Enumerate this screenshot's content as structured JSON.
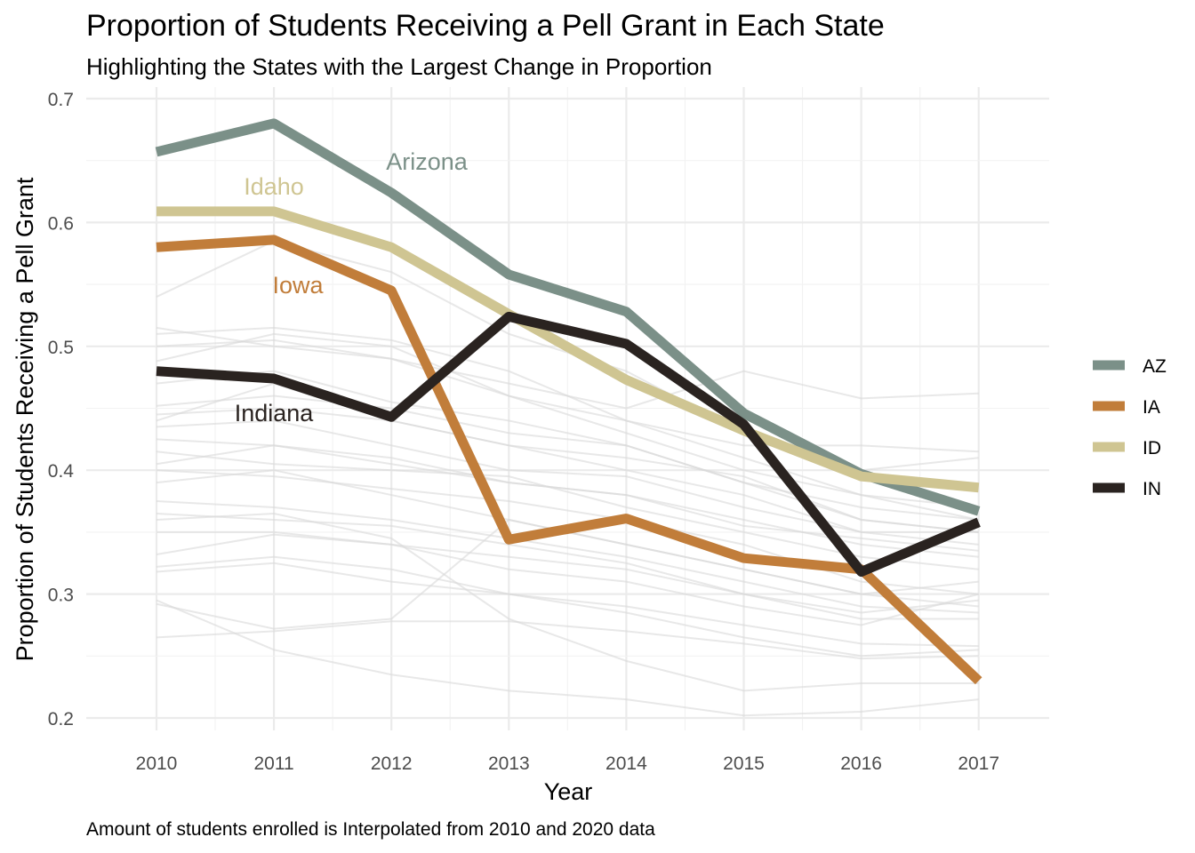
{
  "chart_data": {
    "type": "line",
    "title": "Proportion of Students Receiving a Pell Grant in Each State",
    "subtitle": "Highlighting the States with the Largest Change in Proportion",
    "caption": "Amount of students enrolled is Interpolated from 2010 and 2020 data",
    "xlabel": "Year",
    "ylabel": "Proportion of Students Receiving a Pell Grant",
    "x": [
      2010,
      2011,
      2012,
      2013,
      2014,
      2015,
      2016,
      2017
    ],
    "x_ticks": [
      "2010",
      "2011",
      "2012",
      "2013",
      "2014",
      "2015",
      "2016",
      "2017"
    ],
    "y_ticks": [
      "0.2",
      "0.3",
      "0.4",
      "0.5",
      "0.6",
      "0.7"
    ],
    "ylim": [
      0.2,
      0.7
    ],
    "grid": true,
    "legend_position": "right",
    "series": [
      {
        "name": "AZ",
        "label": "Arizona",
        "color": "#7b9088",
        "values": [
          0.657,
          0.68,
          0.624,
          0.558,
          0.528,
          0.446,
          0.397,
          0.367
        ]
      },
      {
        "name": "IA",
        "label": "Iowa",
        "color": "#c17d3a",
        "values": [
          0.58,
          0.586,
          0.545,
          0.344,
          0.361,
          0.329,
          0.32,
          0.23
        ]
      },
      {
        "name": "ID",
        "label": "Idaho",
        "color": "#cfc592",
        "values": [
          0.609,
          0.609,
          0.58,
          0.526,
          0.473,
          0.432,
          0.395,
          0.386
        ]
      },
      {
        "name": "IN",
        "label": "Indiana",
        "color": "#2a2320",
        "values": [
          0.48,
          0.474,
          0.443,
          0.524,
          0.502,
          0.437,
          0.318,
          0.358
        ]
      }
    ],
    "background_series_color": "#d9d9d9",
    "background_series": [
      [
        0.54,
        0.585,
        0.56,
        0.51,
        0.48,
        0.43,
        0.4,
        0.41
      ],
      [
        0.515,
        0.5,
        0.49,
        0.47,
        0.45,
        0.48,
        0.458,
        0.462
      ],
      [
        0.51,
        0.515,
        0.505,
        0.48,
        0.44,
        0.42,
        0.42,
        0.415
      ],
      [
        0.5,
        0.505,
        0.49,
        0.46,
        0.44,
        0.41,
        0.38,
        0.37
      ],
      [
        0.488,
        0.51,
        0.5,
        0.46,
        0.43,
        0.4,
        0.38,
        0.36
      ],
      [
        0.47,
        0.48,
        0.455,
        0.44,
        0.42,
        0.39,
        0.36,
        0.35
      ],
      [
        0.445,
        0.45,
        0.44,
        0.42,
        0.4,
        0.38,
        0.35,
        0.34
      ],
      [
        0.435,
        0.44,
        0.42,
        0.4,
        0.395,
        0.37,
        0.35,
        0.35
      ],
      [
        0.425,
        0.42,
        0.405,
        0.39,
        0.38,
        0.36,
        0.34,
        0.33
      ],
      [
        0.415,
        0.405,
        0.4,
        0.395,
        0.37,
        0.35,
        0.33,
        0.32
      ],
      [
        0.4,
        0.395,
        0.385,
        0.375,
        0.36,
        0.34,
        0.31,
        0.3
      ],
      [
        0.39,
        0.4,
        0.38,
        0.36,
        0.34,
        0.32,
        0.3,
        0.29
      ],
      [
        0.375,
        0.37,
        0.36,
        0.345,
        0.33,
        0.31,
        0.29,
        0.285
      ],
      [
        0.365,
        0.36,
        0.355,
        0.34,
        0.325,
        0.3,
        0.28,
        0.28
      ],
      [
        0.35,
        0.35,
        0.34,
        0.33,
        0.32,
        0.3,
        0.285,
        0.295
      ],
      [
        0.332,
        0.348,
        0.34,
        0.32,
        0.31,
        0.29,
        0.275,
        0.3
      ],
      [
        0.322,
        0.33,
        0.32,
        0.3,
        0.29,
        0.275,
        0.26,
        0.258
      ],
      [
        0.318,
        0.325,
        0.31,
        0.3,
        0.285,
        0.265,
        0.25,
        0.255
      ],
      [
        0.292,
        0.272,
        0.28,
        0.36,
        0.34,
        0.32,
        0.3,
        0.31
      ],
      [
        0.265,
        0.27,
        0.278,
        0.278,
        0.27,
        0.26,
        0.248,
        0.25
      ],
      [
        0.295,
        0.255,
        0.235,
        0.222,
        0.215,
        0.202,
        0.205,
        0.215
      ],
      [
        0.44,
        0.47,
        0.44,
        0.42,
        0.41,
        0.395,
        0.36,
        0.35
      ],
      [
        0.452,
        0.46,
        0.45,
        0.43,
        0.42,
        0.39,
        0.37,
        0.36
      ],
      [
        0.405,
        0.42,
        0.41,
        0.39,
        0.38,
        0.355,
        0.345,
        0.335
      ],
      [
        0.36,
        0.365,
        0.345,
        0.28,
        0.246,
        0.222,
        0.228,
        0.228
      ]
    ]
  },
  "legend": {
    "items": [
      {
        "label": "AZ",
        "color": "#7b9088"
      },
      {
        "label": "IA",
        "color": "#c17d3a"
      },
      {
        "label": "ID",
        "color": "#cfc592"
      },
      {
        "label": "IN",
        "color": "#2a2320"
      }
    ]
  }
}
